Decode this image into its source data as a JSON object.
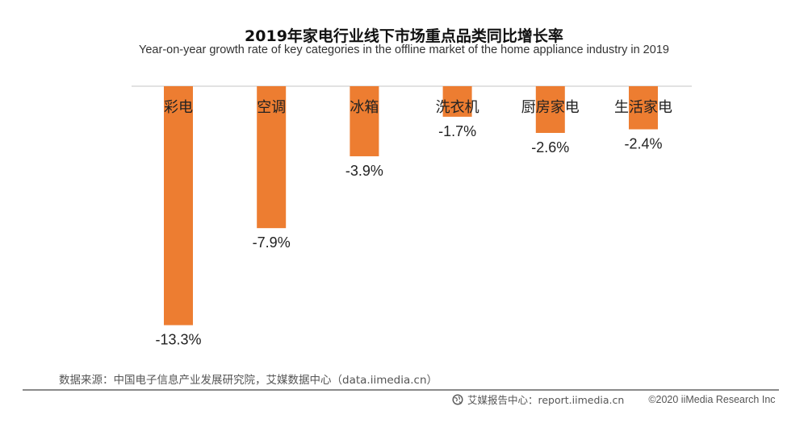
{
  "chart_data": {
    "type": "bar",
    "title": "2019年家电行业线下市场重点品类同比增长率",
    "subtitle": "Year-on-year growth rate of key categories in the offline market of the home appliance industry in 2019",
    "categories": [
      "彩电",
      "空调",
      "冰箱",
      "洗衣机",
      "厨房家电",
      "生活家电"
    ],
    "values": [
      -13.3,
      -7.9,
      -3.9,
      -1.7,
      -2.6,
      -2.4
    ],
    "data_labels": [
      "-13.3%",
      "-7.9%",
      "-3.9%",
      "-1.7%",
      "-2.6%",
      "-2.4%"
    ],
    "unit": "%",
    "xlabel": "",
    "ylabel": "",
    "ylim": [
      -13.3,
      0
    ],
    "grid": false,
    "legend": "none",
    "bar_color": "#ED7D31",
    "axis_color": "#D9D9D9"
  },
  "source": "数据来源：中国电子信息产业发展研究院，艾媒数据中心（data.iimedia.cn）",
  "footer": {
    "icon": "globe-icon",
    "report_center": "艾媒报告中心：report.iimedia.cn",
    "copyright": "©2020  iiMedia Research  Inc"
  }
}
